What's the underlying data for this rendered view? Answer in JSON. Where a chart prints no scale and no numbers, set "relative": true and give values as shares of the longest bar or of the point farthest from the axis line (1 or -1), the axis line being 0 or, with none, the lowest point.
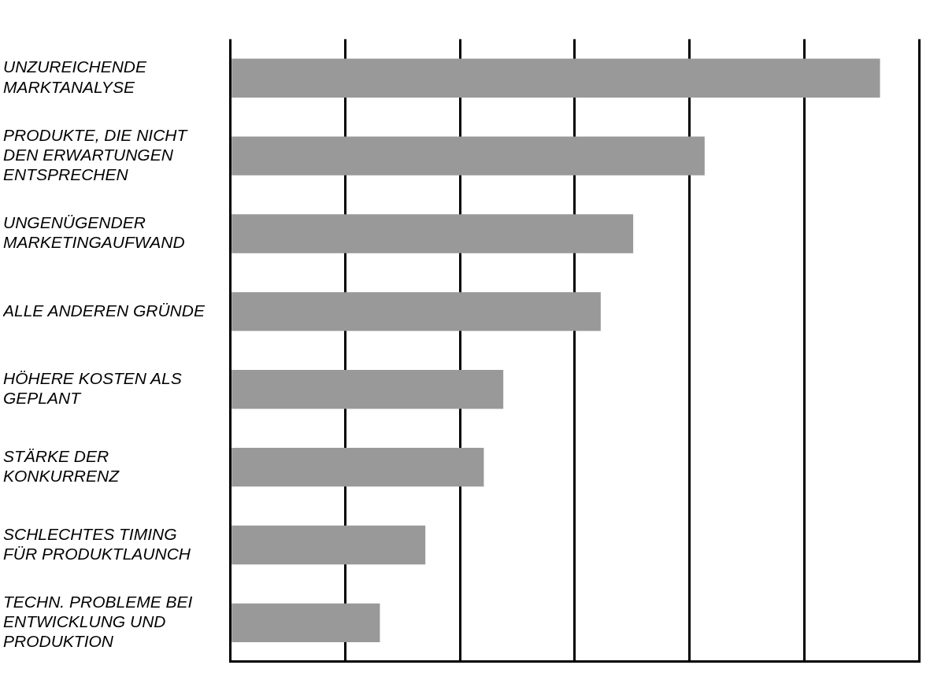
{
  "chart_data": {
    "type": "bar",
    "orientation": "horizontal",
    "relative": true,
    "grid": "x",
    "categories": [
      "UNZUREICHENDE MARKTANALYSE",
      "PRODUKTE, DIE NICHT DEN ERWARTUNGEN ENTSPRECHEN",
      "UNGENÜGENDER MARKETINGAUFWAND",
      "ALLE ANDEREN GRÜNDE",
      "HÖHERE KOSTEN ALS GEPLANT",
      "STÄRKE DER KONKURRENZ",
      "SCHLECHTES TIMING FÜR PRODUKTLAUNCH",
      "TECHN. PROBLEME BEI ENTWICKLUNG UND PRODUKTION"
    ],
    "values": [
      1,
      0.73,
      0.62,
      0.57,
      0.42,
      0.39,
      0.3,
      0.23
    ],
    "color": "#999999"
  }
}
